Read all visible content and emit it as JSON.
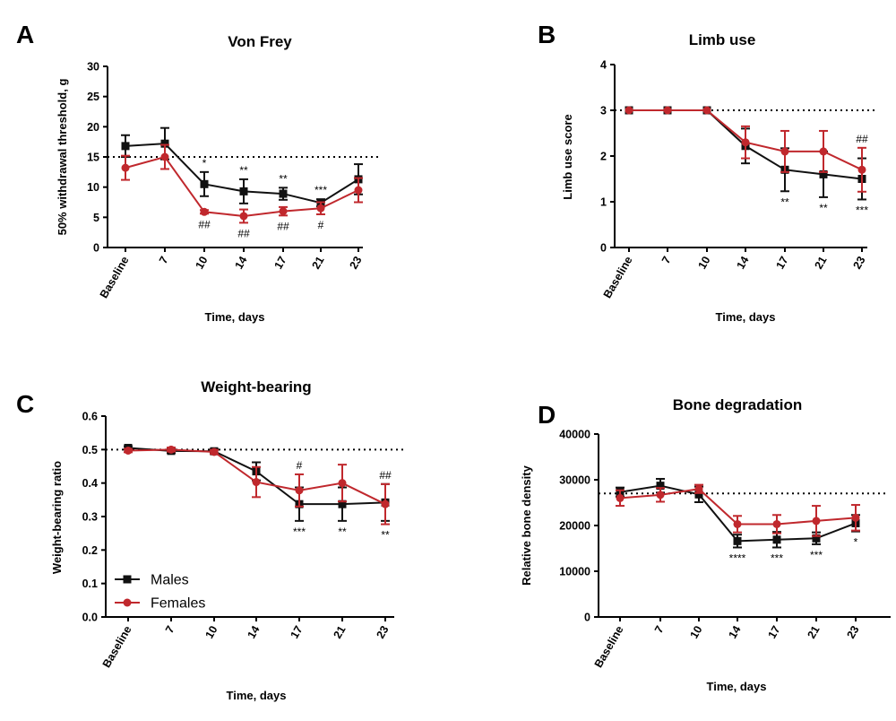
{
  "chart_data": [
    {
      "panel_label": "A",
      "type": "line",
      "title": "Von Frey",
      "xlabel": "Time, days",
      "ylabel": "50% withdrawal threshold, g",
      "categories": [
        "Baseline",
        "7",
        "10",
        "14",
        "17",
        "21",
        "23"
      ],
      "ylim": [
        0,
        30
      ],
      "yticks": [
        "0",
        "5",
        "10",
        "15",
        "20",
        "25",
        "30"
      ],
      "reference_line": 15,
      "series": [
        {
          "color": "#111111",
          "marker": "square",
          "values": [
            16.8,
            17.2,
            10.5,
            9.3,
            8.9,
            7.4,
            11.3
          ],
          "errors": [
            1.8,
            2.6,
            2.0,
            2.0,
            1.0,
            0.6,
            2.5
          ]
        },
        {
          "color": "#c0282d",
          "marker": "circle",
          "values": [
            13.2,
            15.0,
            5.9,
            5.2,
            6.0,
            6.5,
            9.5
          ],
          "errors": [
            2.0,
            2.0,
            0.3,
            1.1,
            0.7,
            1.0,
            2.0
          ]
        }
      ],
      "annotations_above": [
        "",
        "",
        "*",
        "**",
        "**",
        "***",
        ""
      ],
      "annotations_below": [
        "",
        "",
        "##",
        "##",
        "##",
        "#",
        ""
      ]
    },
    {
      "panel_label": "B",
      "type": "line",
      "title": "Limb use",
      "xlabel": "Time, days",
      "ylabel": "Limb use score",
      "categories": [
        "Baseline",
        "7",
        "10",
        "14",
        "17",
        "21",
        "23"
      ],
      "ylim": [
        0,
        4
      ],
      "yticks": [
        "0",
        "1",
        "2",
        "3",
        "4"
      ],
      "reference_line": 3,
      "series": [
        {
          "color": "#111111",
          "marker": "square",
          "values": [
            3.0,
            3.0,
            3.0,
            2.22,
            1.7,
            1.6,
            1.5
          ],
          "errors": [
            0,
            0,
            0,
            0.38,
            0.47,
            0.5,
            0.45
          ]
        },
        {
          "color": "#c0282d",
          "marker": "circle",
          "values": [
            3.0,
            3.0,
            3.0,
            2.3,
            2.1,
            2.1,
            1.7
          ],
          "errors": [
            0,
            0,
            0,
            0.35,
            0.45,
            0.45,
            0.48
          ]
        }
      ],
      "annotations_above": [
        "",
        "",
        "",
        "",
        "",
        "",
        "##"
      ],
      "annotations_below": [
        "",
        "",
        "",
        "",
        "**",
        "**",
        "***"
      ]
    },
    {
      "panel_label": "C",
      "type": "line",
      "title": "Weight-bearing",
      "xlabel": "Time, days",
      "ylabel": "Weight-bearing ratio",
      "categories": [
        "Baseline",
        "7",
        "10",
        "14",
        "17",
        "21",
        "23"
      ],
      "ylim": [
        0,
        0.6
      ],
      "yticks": [
        "0.0",
        "0.1",
        "0.2",
        "0.3",
        "0.4",
        "0.5",
        "0.6"
      ],
      "reference_line": 0.5,
      "series": [
        {
          "name": "Males",
          "color": "#111111",
          "marker": "square",
          "values": [
            0.505,
            0.496,
            0.495,
            0.435,
            0.337,
            0.337,
            0.342
          ],
          "errors": [
            0.005,
            0.006,
            0.006,
            0.027,
            0.05,
            0.05,
            0.055
          ]
        },
        {
          "name": "Females",
          "color": "#c0282d",
          "marker": "circle",
          "values": [
            0.497,
            0.5,
            0.493,
            0.403,
            0.378,
            0.4,
            0.337
          ],
          "errors": [
            0.005,
            0.006,
            0.006,
            0.045,
            0.048,
            0.055,
            0.06
          ]
        }
      ],
      "annotations_above": [
        "",
        "",
        "",
        "",
        "#",
        "",
        "##"
      ],
      "annotations_below": [
        "",
        "",
        "",
        "",
        "***",
        "**",
        "**"
      ]
    },
    {
      "panel_label": "D",
      "type": "line",
      "title": "Bone degradation",
      "xlabel": "Time, days",
      "ylabel": "Relative bone density",
      "categories": [
        "Baseline",
        "7",
        "10",
        "14",
        "17",
        "21",
        "23"
      ],
      "ylim": [
        0,
        40000
      ],
      "yticks": [
        "0",
        "10000",
        "20000",
        "30000",
        "40000"
      ],
      "reference_line": 27000,
      "series": [
        {
          "color": "#111111",
          "marker": "square",
          "values": [
            27300,
            28700,
            26800,
            16600,
            16900,
            17200,
            20500
          ],
          "errors": [
            1000,
            1500,
            1700,
            1400,
            1700,
            1300,
            1800
          ]
        },
        {
          "color": "#c0282d",
          "marker": "circle",
          "values": [
            26000,
            26700,
            28000,
            20300,
            20300,
            21000,
            21700
          ],
          "errors": [
            1700,
            1500,
            900,
            1800,
            2000,
            3300,
            2800
          ]
        }
      ],
      "annotations_above": [
        "",
        "",
        "",
        "",
        "",
        "",
        ""
      ],
      "annotations_below": [
        "",
        "",
        "",
        "****",
        "***",
        "***",
        "*"
      ]
    }
  ]
}
